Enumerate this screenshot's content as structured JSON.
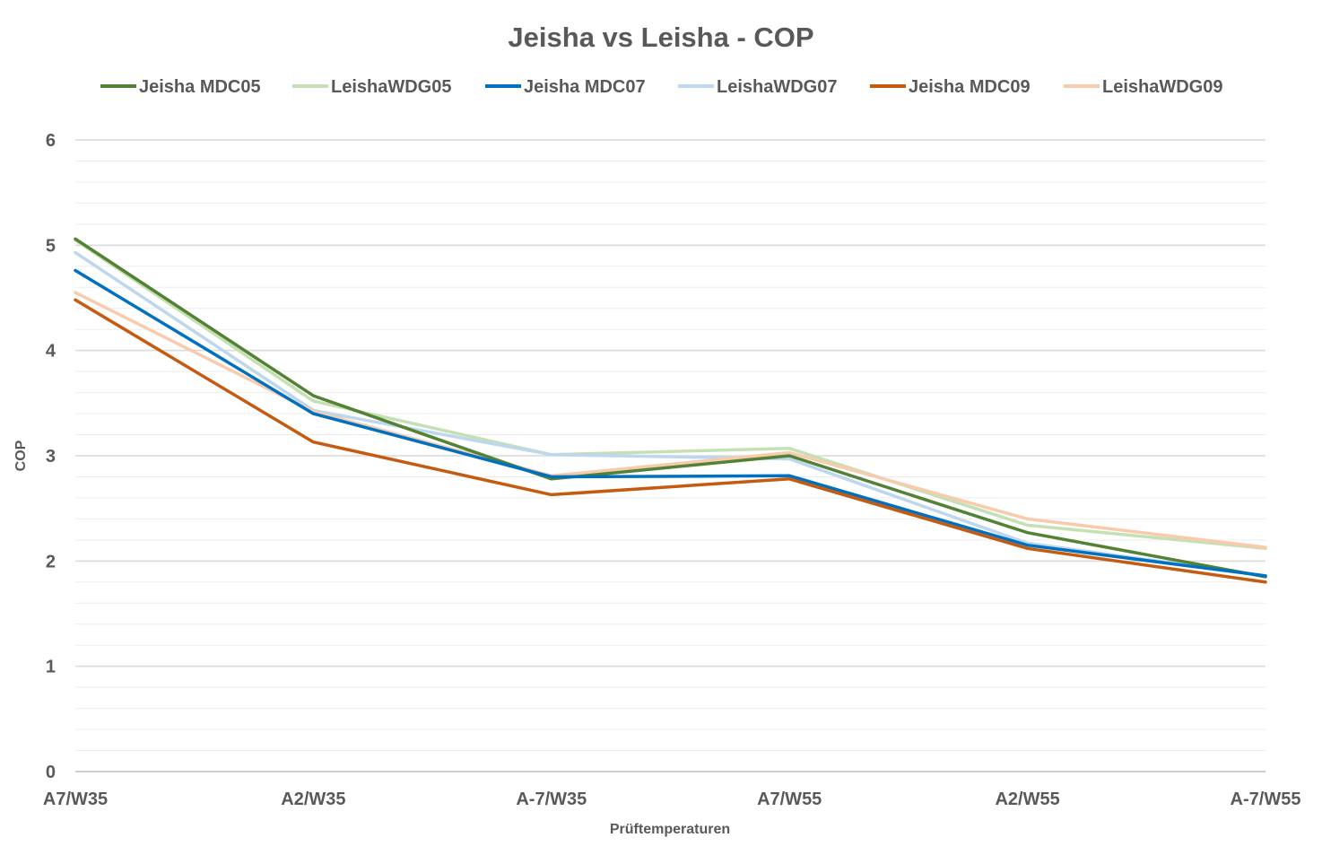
{
  "chart_data": {
    "type": "line",
    "title": "Jeisha vs Leisha - COP",
    "xlabel": "Prüftemperaturen",
    "ylabel": "COP",
    "categories": [
      "A7/W35",
      "A2/W35",
      "A-7/W35",
      "A7/W55",
      "A2/W55",
      "A-7/W55"
    ],
    "ylim": [
      0,
      6
    ],
    "yticks": [
      0,
      1,
      2,
      3,
      4,
      5,
      6
    ],
    "minor_gridlines": 5,
    "grid": true,
    "legend_position": "top",
    "series": [
      {
        "name": "Jeisha MDC05",
        "color": "#548235",
        "values": [
          5.06,
          3.57,
          2.78,
          3.0,
          2.27,
          1.85
        ]
      },
      {
        "name": "LeishaWDG05",
        "color": "#C5E0B4",
        "values": [
          5.05,
          3.52,
          3.01,
          3.07,
          2.34,
          2.12
        ]
      },
      {
        "name": "Jeisha MDC07",
        "color": "#0070C0",
        "values": [
          4.76,
          3.4,
          2.8,
          2.81,
          2.15,
          1.86
        ]
      },
      {
        "name": "LeishaWDG07",
        "color": "#BDD7EE",
        "values": [
          4.93,
          3.43,
          3.01,
          2.97,
          2.17,
          1.86
        ]
      },
      {
        "name": "Jeisha MDC09",
        "color": "#C55A11",
        "values": [
          4.48,
          3.13,
          2.63,
          2.78,
          2.12,
          1.8
        ]
      },
      {
        "name": "LeishaWDG09",
        "color": "#F8CBAD",
        "values": [
          4.55,
          3.42,
          2.81,
          3.03,
          2.4,
          2.13
        ]
      }
    ]
  }
}
